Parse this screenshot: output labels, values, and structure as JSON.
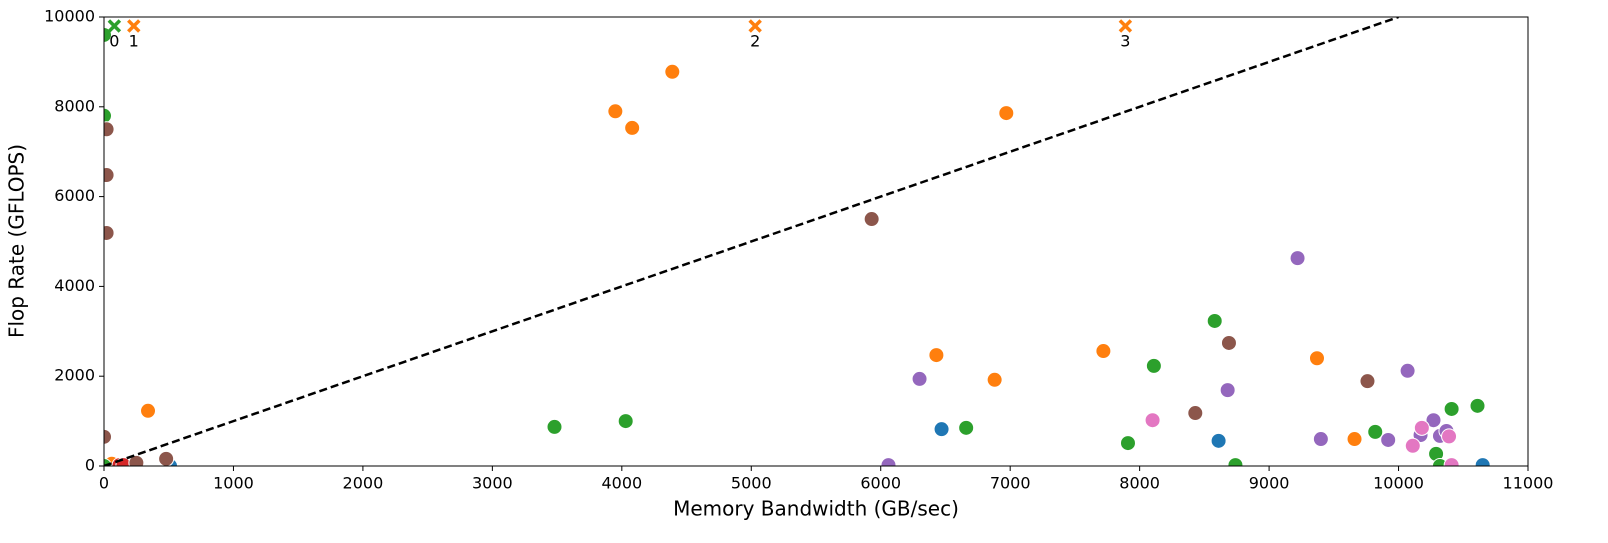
{
  "chart_data": {
    "type": "scatter",
    "xlabel": "Memory Bandwidth (GB/sec)",
    "ylabel": "Flop Rate (GFLOPS)",
    "xlim": [
      0,
      11000
    ],
    "ylim": [
      0,
      10000
    ],
    "xticks": [
      0,
      1000,
      2000,
      3000,
      4000,
      5000,
      6000,
      7000,
      8000,
      9000,
      10000,
      11000
    ],
    "yticks": [
      0,
      2000,
      4000,
      6000,
      8000,
      10000
    ],
    "series": [
      {
        "color": "#1f77b4",
        "marker": "o",
        "x": [
          510,
          6470,
          8610,
          10650
        ],
        "values": [
          0,
          820,
          560,
          20
        ]
      },
      {
        "color": "#ff7f0e",
        "marker": "o",
        "x": [
          60,
          340,
          3950,
          4080,
          4390,
          6430,
          6880,
          6970,
          7720,
          9370,
          9660
        ],
        "values": [
          50,
          1230,
          7900,
          7530,
          8780,
          2470,
          1920,
          7860,
          2560,
          2400,
          600
        ]
      },
      {
        "color": "#2ca02c",
        "marker": "o",
        "x": [
          0,
          0,
          0,
          3480,
          4030,
          6660,
          7910,
          8110,
          8580,
          8740,
          9820,
          10290,
          10320,
          10410,
          10610
        ],
        "values": [
          9600,
          7800,
          0,
          870,
          1000,
          850,
          510,
          2230,
          3230,
          20,
          760,
          270,
          0,
          1270,
          1340
        ]
      },
      {
        "color": "#d62728",
        "marker": "o",
        "x": [
          120,
          150
        ],
        "values": [
          20,
          20
        ]
      },
      {
        "color": "#9467bd",
        "marker": "o",
        "x": [
          6060,
          6300,
          8680,
          9220,
          9400,
          9920,
          10070,
          10170,
          10270,
          10320,
          10370
        ],
        "values": [
          20,
          1940,
          1690,
          4630,
          600,
          580,
          2120,
          690,
          1020,
          670,
          780
        ]
      },
      {
        "color": "#8c564b",
        "marker": "o",
        "x": [
          0,
          20,
          20,
          20,
          250,
          480,
          5930,
          8430,
          8690,
          9760
        ],
        "values": [
          650,
          7500,
          6480,
          5190,
          70,
          160,
          5500,
          1180,
          2740,
          1890
        ]
      },
      {
        "color": "#e377c2",
        "marker": "o",
        "x": [
          8100,
          10110,
          10180,
          10390,
          10410
        ],
        "values": [
          1020,
          450,
          850,
          660,
          20
        ]
      },
      {
        "color": "#000000",
        "line": "dashed",
        "x": [
          0,
          10000
        ],
        "values": [
          0,
          10000
        ]
      },
      {
        "color": "#2ca02c",
        "marker": "x",
        "x": [
          80
        ],
        "values": [
          9800
        ],
        "labels": [
          "0"
        ]
      },
      {
        "color": "#ff7f0e",
        "marker": "x",
        "x": [
          230,
          5030,
          7890
        ],
        "values": [
          9800,
          9800,
          9800
        ],
        "labels": [
          "1",
          "2",
          "3"
        ]
      }
    ]
  }
}
